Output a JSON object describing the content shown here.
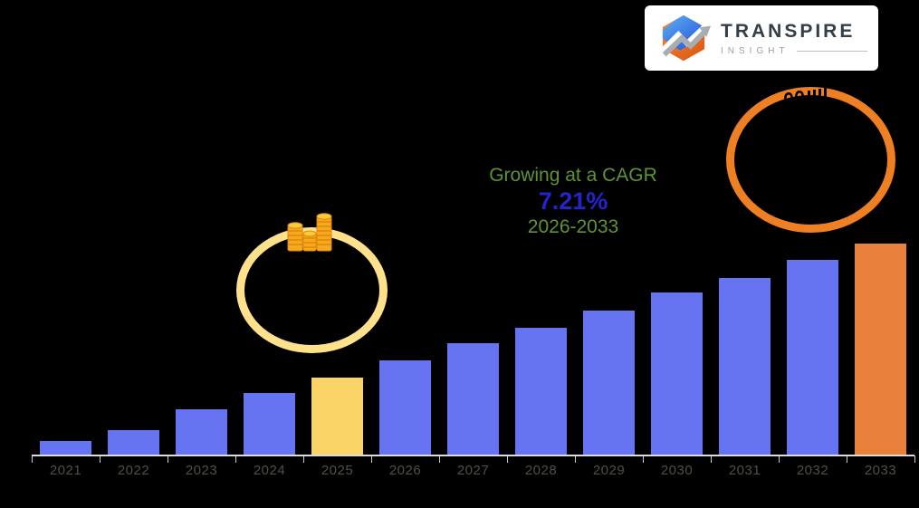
{
  "background_color": "#000000",
  "logo": {
    "brand": "TRANSPIRE",
    "sub": "INSIGHT",
    "card_color": "#ffffff",
    "brand_color": "#333f48",
    "sub_color": "#9aa0a6",
    "icon_blue": "#1d49d6",
    "icon_orange": "#e05a14",
    "icon_arrow_gray": "#9aa0a6"
  },
  "annotation": {
    "line1": "Growing at a CAGR",
    "line2": "7.21%",
    "line3": "2026-2033",
    "green_color": "#5f9335",
    "blue_color": "#2424cd"
  },
  "decorations": {
    "ring_2025_color": "#ffe18c",
    "ring_2033_color": "#ee7f23",
    "coin_color": "#f7a823",
    "coin_top_color": "#ffc93c"
  },
  "chart_data": {
    "type": "bar",
    "title": "",
    "xlabel": "",
    "ylabel": "",
    "categories": [
      "2021",
      "2022",
      "2023",
      "2024",
      "2025",
      "2026",
      "2027",
      "2028",
      "2029",
      "2030",
      "2031",
      "2032",
      "2033"
    ],
    "values": [
      6.8,
      12.0,
      21.8,
      29.5,
      36.8,
      44.9,
      53.0,
      60.3,
      68.4,
      76.9,
      83.8,
      92.3,
      100.0
    ],
    "values_note": "relative bar heights in % of 2033 bar; no numeric y-axis shown in image",
    "ylim": [
      0,
      100
    ],
    "grid": false,
    "legend": false,
    "bar_colors": {
      "default": "#6774f1",
      "2025": "#fbd468",
      "2033": "#e8823b"
    },
    "axis_color": "#dcdcdc",
    "tick_label_color": "#4d5146"
  }
}
